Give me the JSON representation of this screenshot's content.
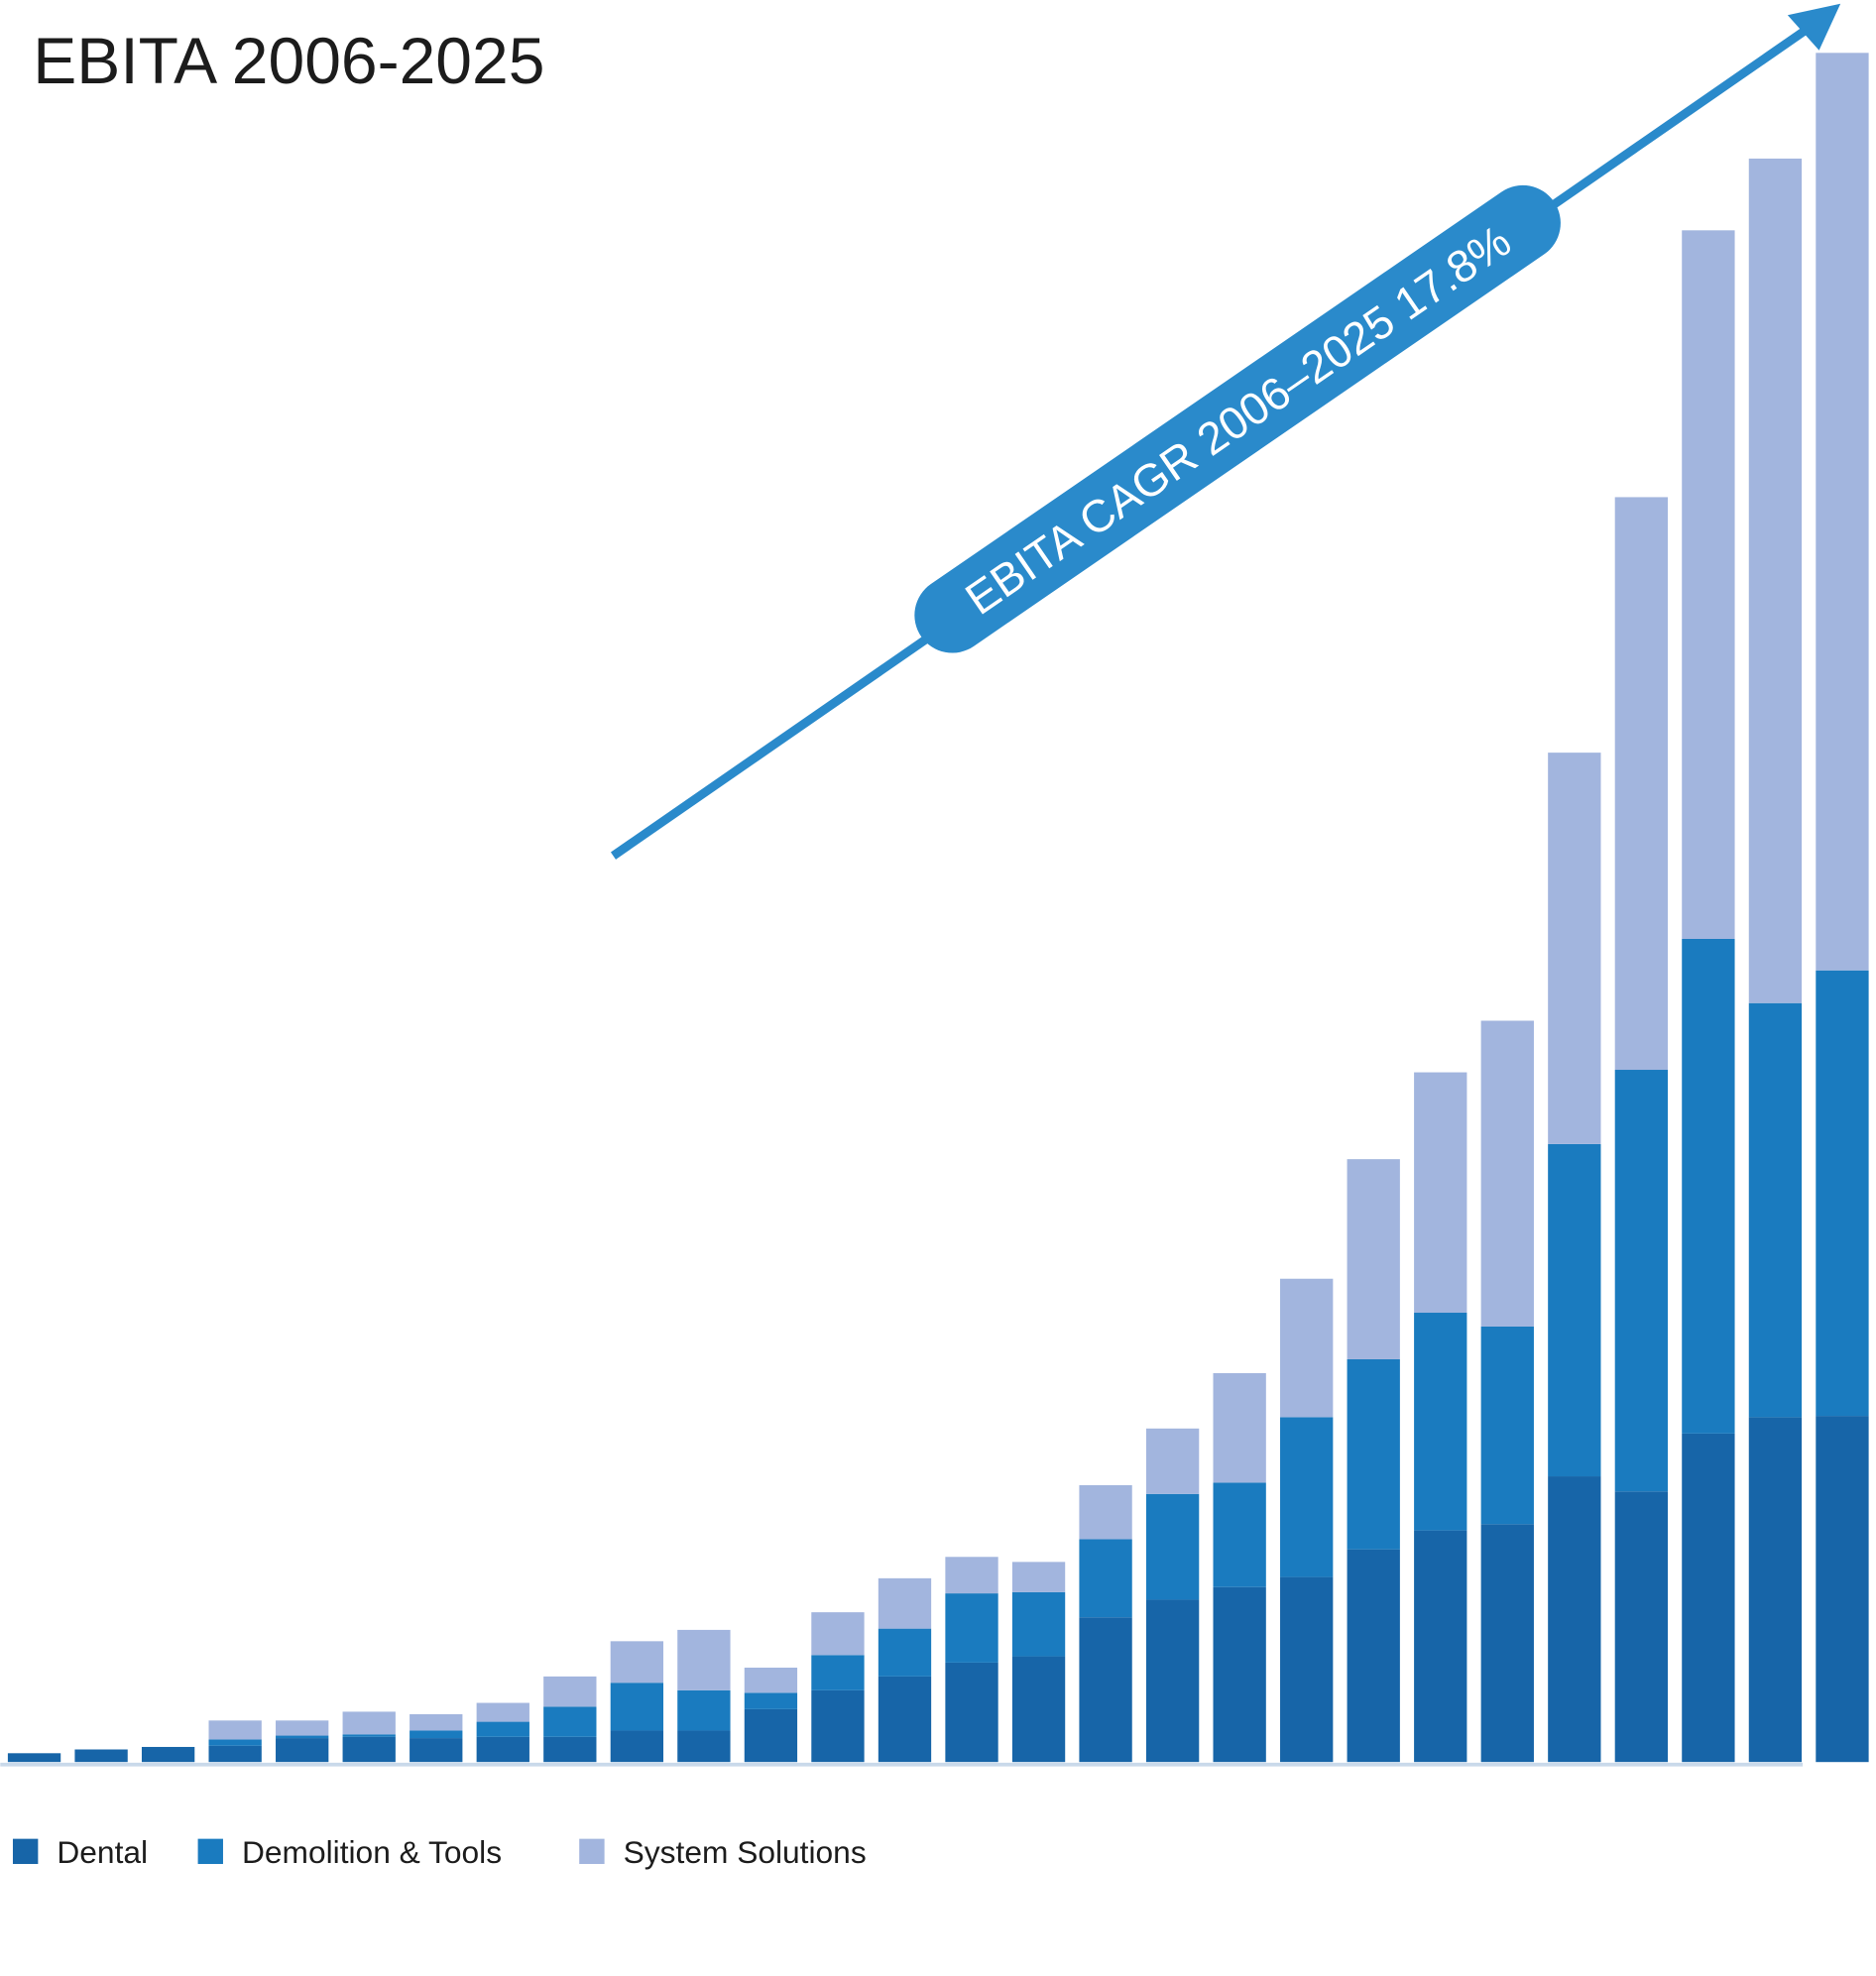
{
  "chart_data": {
    "type": "bar",
    "stacked": true,
    "title": "EBITA 2006-2025",
    "annotation": "EBITA CAGR 2006–2025 17.8%",
    "xlabel": "",
    "ylabel": "",
    "grid": false,
    "legend_position": "bottom-left",
    "colors": {
      "Dental": "#1765a8",
      "Demolition & Tools": "#1a7bbf",
      "System Solutions": "#a2b5de",
      "arrow": "#2a8acb",
      "baseline": "#c9d9ea"
    },
    "series": [
      {
        "name": "Dental",
        "values": [
          7,
          10,
          12,
          13,
          19,
          20,
          19,
          20,
          20,
          25,
          25,
          42,
          57,
          68,
          79,
          84,
          115,
          129,
          139,
          147,
          169,
          184,
          189,
          227,
          215,
          261,
          274,
          275
        ]
      },
      {
        "name": "Demolition & Tools",
        "values": [
          0,
          0,
          0,
          5,
          2,
          2,
          6,
          12,
          24,
          38,
          32,
          13,
          28,
          38,
          55,
          51,
          62,
          84,
          83,
          127,
          151,
          173,
          157,
          264,
          335,
          393,
          329,
          354
        ]
      },
      {
        "name": "System Solutions",
        "values": [
          0,
          0,
          0,
          15,
          12,
          18,
          13,
          15,
          24,
          33,
          48,
          20,
          34,
          40,
          29,
          24,
          43,
          52,
          87,
          110,
          159,
          191,
          243,
          311,
          455,
          563,
          671,
          729
        ]
      }
    ]
  }
}
